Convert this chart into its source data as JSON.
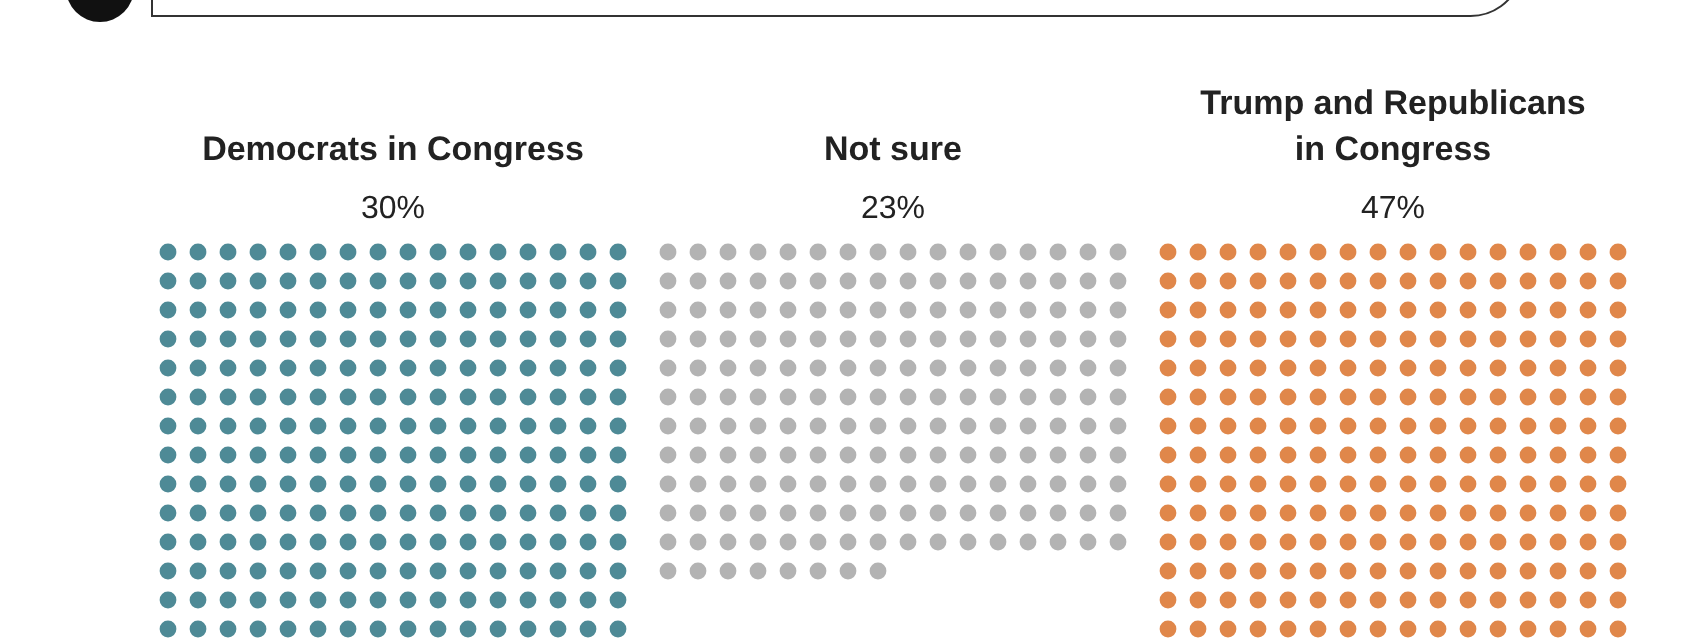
{
  "chart_data": {
    "type": "other",
    "categories": [
      "Democrats in Congress",
      "Not sure",
      "Trump and Republicans in Congress"
    ],
    "values": [
      30,
      23,
      47
    ],
    "value_labels": [
      "30%",
      "23%",
      "47%"
    ],
    "colors": [
      "#4e8a96",
      "#b3b3b3",
      "#e0874a"
    ]
  }
}
